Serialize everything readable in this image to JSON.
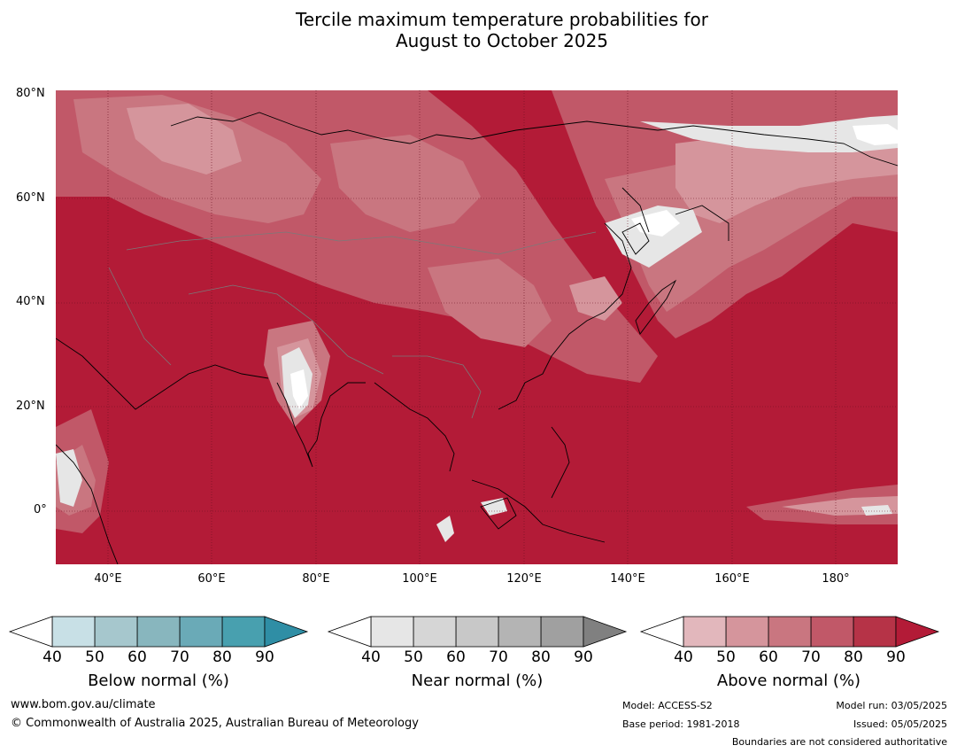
{
  "title_line1": "Tercile maximum temperature probabilities for",
  "title_line2": "August to October 2025",
  "map": {
    "lat_labels": [
      "80°N",
      "60°N",
      "40°N",
      "20°N",
      "0°"
    ],
    "lon_labels": [
      "40°E",
      "60°E",
      "80°E",
      "100°E",
      "120°E",
      "140°E",
      "160°E",
      "180°"
    ],
    "dominant_color": "#b31b37"
  },
  "legends": {
    "below": {
      "title": "Below normal (%)",
      "ticks": [
        "40",
        "50",
        "60",
        "70",
        "80",
        "90"
      ],
      "colors": [
        "#c8e0e6",
        "#a6c7cd",
        "#88b6be",
        "#6aaab7",
        "#48a0af",
        "#2f8ea5"
      ]
    },
    "near": {
      "title": "Near normal (%)",
      "ticks": [
        "40",
        "50",
        "60",
        "70",
        "80",
        "90"
      ],
      "colors": [
        "#e6e6e6",
        "#d6d6d6",
        "#c8c8c8",
        "#b4b4b4",
        "#a0a0a0",
        "#808080"
      ]
    },
    "above": {
      "title": "Above normal (%)",
      "ticks": [
        "40",
        "50",
        "60",
        "70",
        "80",
        "90"
      ],
      "colors": [
        "#e2b7bc",
        "#d5959c",
        "#c97680",
        "#c15868",
        "#b63347",
        "#b31b37"
      ]
    }
  },
  "footer": {
    "website": "www.bom.gov.au/climate",
    "copyright": "© Commonwealth of Australia 2025, Australian Bureau of Meteorology",
    "model": "Model: ACCESS-S2",
    "base_period": "Base period: 1981-2018",
    "model_run": "Model run: 03/05/2025",
    "issued": "Issued: 05/05/2025",
    "disclaimer": "Boundaries are not considered authoritative"
  }
}
